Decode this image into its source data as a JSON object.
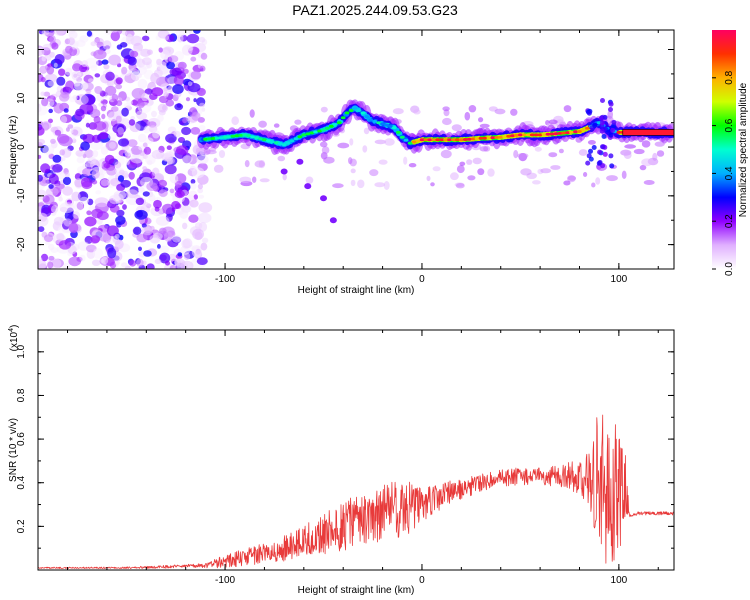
{
  "chart_data": [
    {
      "type": "heatmap",
      "title": "PAZ1.2025.244.09.53.G23",
      "xlabel": "Height of straight line (km)",
      "ylabel": "Frequency (Hz)",
      "xlim": [
        -195,
        128
      ],
      "ylim": [
        -25,
        24
      ],
      "x_ticks": [
        -100,
        0,
        100
      ],
      "x_tick_labels": [
        "-100",
        "0",
        "100"
      ],
      "y_ticks": [
        -20,
        -10,
        0,
        10,
        20
      ],
      "y_tick_labels": [
        "-20",
        "-10",
        "0",
        "10",
        "20"
      ],
      "ridge": {
        "x": [
          -112,
          -100,
          -90,
          -80,
          -70,
          -60,
          -50,
          -42,
          -38,
          -34,
          -30,
          -26,
          -22,
          -18,
          -14,
          -10,
          -6,
          0,
          10,
          20,
          30,
          40,
          50,
          60,
          70,
          80,
          85,
          90,
          95,
          100,
          110,
          128
        ],
        "y": [
          1.5,
          2.0,
          2.5,
          1.5,
          0.5,
          2.5,
          3.5,
          5.0,
          7.0,
          8.0,
          7.0,
          5.5,
          5.0,
          4.5,
          4.0,
          2.0,
          0.8,
          1.5,
          1.5,
          1.5,
          1.8,
          2.0,
          2.5,
          2.5,
          2.8,
          3.2,
          4.0,
          5.0,
          3.5,
          3.0,
          3.0,
          3.0
        ]
      },
      "noise_region_x": [
        -195,
        -110
      ],
      "colorbar": {
        "label": "Normalized spectral amplitude",
        "range": [
          0.0,
          1.0
        ],
        "ticks": [
          0.0,
          0.2,
          0.4,
          0.6,
          0.8
        ],
        "tick_labels": [
          "0.0",
          "0.2",
          "0.4",
          "0.6",
          "0.8"
        ],
        "colors": [
          "#ffffff",
          "#e0b0ff",
          "#9000ff",
          "#0000ff",
          "#00b0ff",
          "#00ffd0",
          "#00ff00",
          "#d0ff00",
          "#ffb000",
          "#ff3000",
          "#ff0060"
        ]
      }
    },
    {
      "type": "line",
      "xlabel": "Height of straight line (km)",
      "ylabel": "SNR (10 * v/v)",
      "y_multiplier": "(x10",
      "y_multiplier_exp": "4",
      "y_multiplier_close": ")",
      "xlim": [
        -195,
        128
      ],
      "ylim": [
        0,
        1.1
      ],
      "x_ticks": [
        -100,
        0,
        100
      ],
      "x_tick_labels": [
        "-100",
        "0",
        "100"
      ],
      "y_ticks": [
        0.2,
        0.4,
        0.6,
        0.8,
        1.0
      ],
      "y_tick_labels": [
        "0.2",
        "0.4",
        "0.6",
        "0.8",
        "1.0"
      ],
      "series": [
        {
          "name": "SNR",
          "color": "#e83a3a",
          "x": [
            -195,
            -150,
            -110,
            -100,
            -90,
            -80,
            -70,
            -60,
            -50,
            -40,
            -30,
            -20,
            -10,
            0,
            10,
            20,
            30,
            40,
            50,
            60,
            70,
            80,
            85,
            90,
            95,
            100,
            104,
            106,
            110,
            120,
            128
          ],
          "mean": [
            0.01,
            0.01,
            0.02,
            0.04,
            0.06,
            0.08,
            0.1,
            0.13,
            0.17,
            0.2,
            0.24,
            0.26,
            0.28,
            0.3,
            0.34,
            0.37,
            0.4,
            0.42,
            0.43,
            0.43,
            0.43,
            0.43,
            0.43,
            0.42,
            0.4,
            0.38,
            0.35,
            0.25,
            0.26,
            0.26,
            0.26
          ],
          "amp": [
            0.003,
            0.004,
            0.01,
            0.03,
            0.04,
            0.05,
            0.06,
            0.07,
            0.1,
            0.12,
            0.12,
            0.13,
            0.14,
            0.08,
            0.06,
            0.05,
            0.04,
            0.04,
            0.04,
            0.04,
            0.05,
            0.08,
            0.15,
            0.35,
            0.4,
            0.3,
            0.15,
            0.01,
            0.008,
            0.008,
            0.008
          ]
        }
      ]
    }
  ]
}
